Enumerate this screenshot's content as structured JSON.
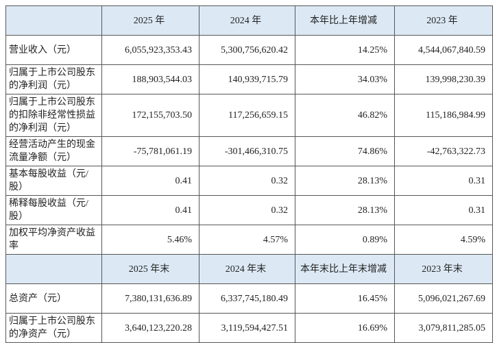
{
  "table": {
    "sections": [
      {
        "header": [
          "2025 年",
          "2024 年",
          "本年比上年增减",
          "2023 年"
        ],
        "rows": [
          [
            "营业收入（元）",
            "6,055,923,353.43",
            "5,300,756,620.42",
            "14.25%",
            "4,544,067,840.59"
          ],
          [
            "归属于上市公司股东的净利润（元）",
            "188,903,544.03",
            "140,939,715.79",
            "34.03%",
            "139,998,230.39"
          ],
          [
            "归属于上市公司股东的扣除非经常性损益的净利润（元）",
            "172,155,703.50",
            "117,256,659.15",
            "46.82%",
            "115,186,984.99"
          ],
          [
            "经营活动产生的现金流量净额（元）",
            "-75,781,061.19",
            "-301,466,310.75",
            "74.86%",
            "-42,763,322.73"
          ],
          [
            "基本每股收益（元/股）",
            "0.41",
            "0.32",
            "28.13%",
            "0.31"
          ],
          [
            "稀释每股收益（元/股）",
            "0.41",
            "0.32",
            "28.13%",
            "0.31"
          ],
          [
            "加权平均净资产收益率",
            "5.46%",
            "4.57%",
            "0.89%",
            "4.59%"
          ]
        ]
      },
      {
        "header": [
          "2025 年末",
          "2024 年末",
          "本年末比上年末增减",
          "2023 年末"
        ],
        "rows": [
          [
            "总资产（元）",
            "7,380,131,636.89",
            "6,337,745,180.49",
            "16.45%",
            "5,096,021,267.69"
          ],
          [
            "归属于上市公司股东的净资产（元）",
            "3,640,123,220.28",
            "3,119,594,427.51",
            "16.69%",
            "3,079,811,285.05"
          ]
        ]
      }
    ]
  }
}
